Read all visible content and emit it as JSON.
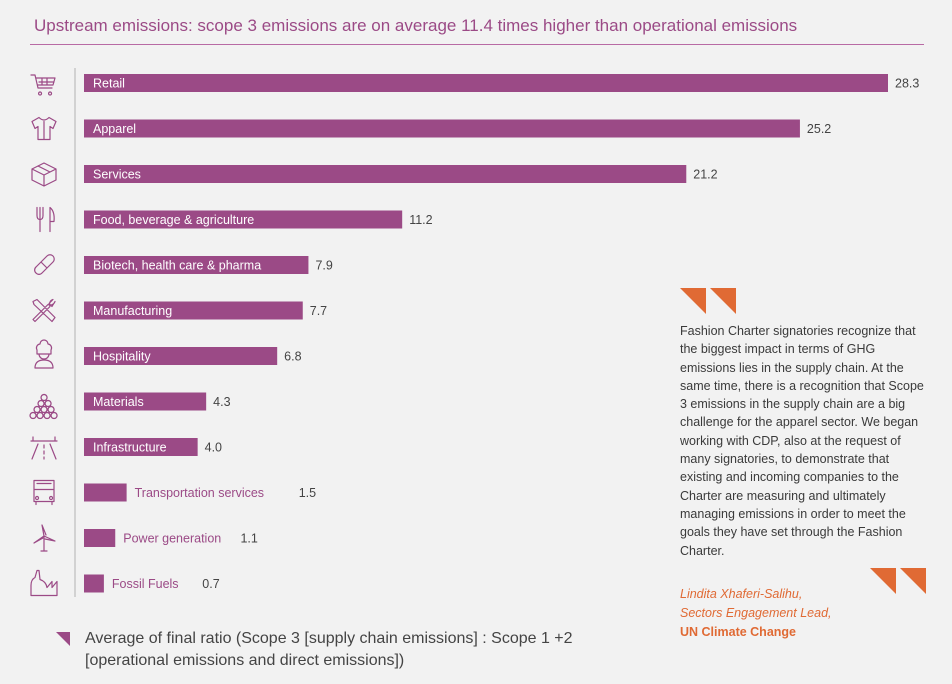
{
  "title": "Upstream emissions: scope 3 emissions are on average 11.4 times higher than operational emissions",
  "chart_data": {
    "type": "bar",
    "orientation": "horizontal",
    "categories": [
      "Retail",
      "Apparel",
      "Services",
      "Food, beverage & agriculture",
      "Biotech, health care & pharma",
      "Manufacturing",
      "Hospitality",
      "Materials",
      "Infrastructure",
      "Transportation services",
      "Power generation",
      "Fossil Fuels"
    ],
    "values": [
      28.3,
      25.2,
      21.2,
      11.2,
      7.9,
      7.7,
      6.8,
      4.3,
      4.0,
      1.5,
      1.1,
      0.7
    ],
    "value_labels": [
      "28.3",
      "25.2",
      "21.2",
      "11.2",
      "7.9",
      "7.7",
      "6.8",
      "4.3",
      "4.0",
      "1.5",
      "1.1",
      "0.7"
    ],
    "icons": [
      "shopping-cart-icon",
      "shirt-icon",
      "box-icon",
      "fork-knife-icon",
      "pill-icon",
      "tools-icon",
      "chef-icon",
      "log-pile-icon",
      "road-icon",
      "bus-icon",
      "wind-turbine-icon",
      "factory-icon"
    ],
    "xlim": [
      0,
      28.3
    ],
    "bar_color": "#9b4a86",
    "grid": false
  },
  "legend": {
    "text": "Average of final ratio (Scope 3 [supply chain emissions] : Scope 1 +2 [operational emissions and direct emissions])",
    "color": "#9b4a86"
  },
  "quote": {
    "text": "Fashion Charter signatories recognize that the biggest impact in terms of GHG emissions lies in the supply chain. At the same time, there is a recognition that Scope 3 emissions in the supply chain are a big challenge for the apparel sector. We began working with CDP, also at the request of many signatories, to demonstrate that existing and incoming companies to the Charter are measuring and ultimately managing emissions in order to meet the goals they have set through the Fashion Charter.",
    "author": "Lindita Xhaferi-Salihu,",
    "role": "Sectors Engagement Lead,",
    "organization": "UN Climate Change",
    "accent_color": "#e06a34"
  }
}
